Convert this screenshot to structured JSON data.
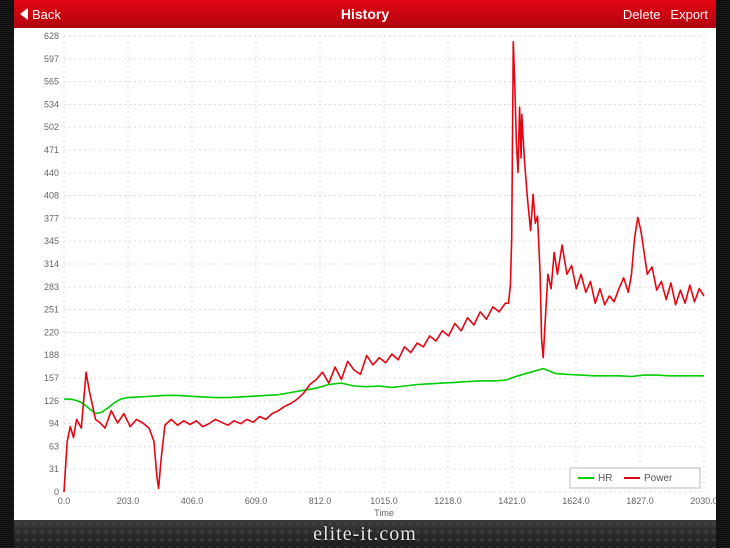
{
  "nav": {
    "back": "Back",
    "title": "History",
    "delete": "Delete",
    "export": "Export"
  },
  "footer": {
    "brand": "elite-it.com"
  },
  "chart": {
    "type": "line",
    "xlabel": "Time",
    "xlim": [
      0,
      2030
    ],
    "xtick_step": 203,
    "xticks": [
      "0.0",
      "203.0",
      "406.0",
      "609.0",
      "812.0",
      "1015.0",
      "1218.0",
      "1421.0",
      "1624.0",
      "1827.0",
      "2030.0"
    ],
    "ylim": [
      0,
      628
    ],
    "ytick_step": 31.4,
    "yticks": [
      "0",
      "31",
      "63",
      "94",
      "126",
      "157",
      "188",
      "220",
      "251",
      "283",
      "314",
      "345",
      "377",
      "408",
      "440",
      "471",
      "502",
      "534",
      "565",
      "597",
      "628"
    ],
    "background_color": "#ffffff",
    "grid_color": "#dcdcdc",
    "axis_text_color": "#666666",
    "label_fontsize": 9,
    "line_width": 1.6,
    "legend": {
      "position": "bottom-right",
      "items": [
        {
          "label": "HR",
          "color": "#00cc00"
        },
        {
          "label": "Power",
          "color": "#e30613"
        }
      ]
    },
    "series": [
      {
        "name": "HR",
        "color": "#00cc00",
        "points": [
          [
            0,
            128
          ],
          [
            20,
            128
          ],
          [
            40,
            126
          ],
          [
            60,
            122
          ],
          [
            80,
            115
          ],
          [
            100,
            108
          ],
          [
            120,
            110
          ],
          [
            140,
            116
          ],
          [
            160,
            123
          ],
          [
            180,
            128
          ],
          [
            200,
            130
          ],
          [
            240,
            131
          ],
          [
            280,
            132
          ],
          [
            320,
            133
          ],
          [
            360,
            133
          ],
          [
            400,
            132
          ],
          [
            440,
            131
          ],
          [
            480,
            130
          ],
          [
            520,
            130
          ],
          [
            560,
            131
          ],
          [
            600,
            132
          ],
          [
            640,
            133
          ],
          [
            680,
            134
          ],
          [
            720,
            137
          ],
          [
            760,
            140
          ],
          [
            800,
            143
          ],
          [
            840,
            148
          ],
          [
            880,
            150
          ],
          [
            920,
            146
          ],
          [
            960,
            145
          ],
          [
            1000,
            146
          ],
          [
            1040,
            144
          ],
          [
            1080,
            146
          ],
          [
            1120,
            148
          ],
          [
            1160,
            149
          ],
          [
            1200,
            150
          ],
          [
            1240,
            151
          ],
          [
            1280,
            152
          ],
          [
            1320,
            153
          ],
          [
            1360,
            153
          ],
          [
            1400,
            154
          ],
          [
            1440,
            160
          ],
          [
            1480,
            165
          ],
          [
            1520,
            170
          ],
          [
            1560,
            163
          ],
          [
            1600,
            162
          ],
          [
            1640,
            161
          ],
          [
            1680,
            160
          ],
          [
            1720,
            160
          ],
          [
            1760,
            160
          ],
          [
            1800,
            159
          ],
          [
            1840,
            161
          ],
          [
            1880,
            161
          ],
          [
            1920,
            160
          ],
          [
            1960,
            160
          ],
          [
            2000,
            160
          ],
          [
            2030,
            160
          ]
        ]
      },
      {
        "name": "Power",
        "color": "#e30613",
        "points": [
          [
            0,
            0
          ],
          [
            10,
            70
          ],
          [
            20,
            90
          ],
          [
            30,
            75
          ],
          [
            40,
            100
          ],
          [
            55,
            88
          ],
          [
            70,
            165
          ],
          [
            80,
            140
          ],
          [
            90,
            120
          ],
          [
            100,
            100
          ],
          [
            115,
            95
          ],
          [
            130,
            88
          ],
          [
            150,
            112
          ],
          [
            170,
            95
          ],
          [
            190,
            108
          ],
          [
            210,
            90
          ],
          [
            230,
            100
          ],
          [
            250,
            95
          ],
          [
            270,
            88
          ],
          [
            285,
            70
          ],
          [
            295,
            20
          ],
          [
            300,
            5
          ],
          [
            308,
            45
          ],
          [
            320,
            92
          ],
          [
            340,
            100
          ],
          [
            360,
            92
          ],
          [
            380,
            98
          ],
          [
            400,
            93
          ],
          [
            420,
            98
          ],
          [
            440,
            90
          ],
          [
            460,
            94
          ],
          [
            480,
            100
          ],
          [
            500,
            96
          ],
          [
            520,
            92
          ],
          [
            540,
            98
          ],
          [
            560,
            94
          ],
          [
            580,
            100
          ],
          [
            600,
            96
          ],
          [
            620,
            104
          ],
          [
            640,
            100
          ],
          [
            660,
            108
          ],
          [
            680,
            112
          ],
          [
            700,
            118
          ],
          [
            720,
            122
          ],
          [
            740,
            128
          ],
          [
            760,
            136
          ],
          [
            780,
            148
          ],
          [
            800,
            155
          ],
          [
            820,
            165
          ],
          [
            840,
            150
          ],
          [
            860,
            172
          ],
          [
            880,
            155
          ],
          [
            900,
            180
          ],
          [
            920,
            168
          ],
          [
            940,
            162
          ],
          [
            960,
            188
          ],
          [
            980,
            175
          ],
          [
            1000,
            185
          ],
          [
            1020,
            178
          ],
          [
            1040,
            190
          ],
          [
            1060,
            182
          ],
          [
            1080,
            200
          ],
          [
            1100,
            192
          ],
          [
            1120,
            205
          ],
          [
            1140,
            200
          ],
          [
            1160,
            215
          ],
          [
            1180,
            208
          ],
          [
            1200,
            222
          ],
          [
            1220,
            215
          ],
          [
            1240,
            232
          ],
          [
            1260,
            222
          ],
          [
            1280,
            240
          ],
          [
            1300,
            230
          ],
          [
            1320,
            248
          ],
          [
            1340,
            238
          ],
          [
            1360,
            255
          ],
          [
            1380,
            248
          ],
          [
            1400,
            260
          ],
          [
            1410,
            260
          ],
          [
            1416,
            285
          ],
          [
            1420,
            350
          ],
          [
            1425,
            620
          ],
          [
            1430,
            560
          ],
          [
            1435,
            480
          ],
          [
            1440,
            440
          ],
          [
            1445,
            530
          ],
          [
            1450,
            460
          ],
          [
            1452,
            520
          ],
          [
            1460,
            460
          ],
          [
            1470,
            405
          ],
          [
            1480,
            360
          ],
          [
            1488,
            410
          ],
          [
            1495,
            370
          ],
          [
            1502,
            380
          ],
          [
            1510,
            300
          ],
          [
            1515,
            210
          ],
          [
            1520,
            185
          ],
          [
            1525,
            225
          ],
          [
            1535,
            300
          ],
          [
            1545,
            280
          ],
          [
            1555,
            330
          ],
          [
            1565,
            300
          ],
          [
            1580,
            340
          ],
          [
            1595,
            300
          ],
          [
            1610,
            312
          ],
          [
            1625,
            280
          ],
          [
            1640,
            300
          ],
          [
            1655,
            275
          ],
          [
            1670,
            290
          ],
          [
            1685,
            260
          ],
          [
            1700,
            280
          ],
          [
            1715,
            258
          ],
          [
            1730,
            270
          ],
          [
            1745,
            262
          ],
          [
            1760,
            280
          ],
          [
            1775,
            295
          ],
          [
            1790,
            275
          ],
          [
            1800,
            300
          ],
          [
            1810,
            350
          ],
          [
            1820,
            378
          ],
          [
            1830,
            360
          ],
          [
            1840,
            330
          ],
          [
            1850,
            300
          ],
          [
            1865,
            310
          ],
          [
            1880,
            278
          ],
          [
            1895,
            290
          ],
          [
            1910,
            265
          ],
          [
            1925,
            288
          ],
          [
            1940,
            258
          ],
          [
            1955,
            278
          ],
          [
            1970,
            260
          ],
          [
            1985,
            285
          ],
          [
            2000,
            262
          ],
          [
            2015,
            280
          ],
          [
            2030,
            270
          ]
        ]
      }
    ]
  }
}
